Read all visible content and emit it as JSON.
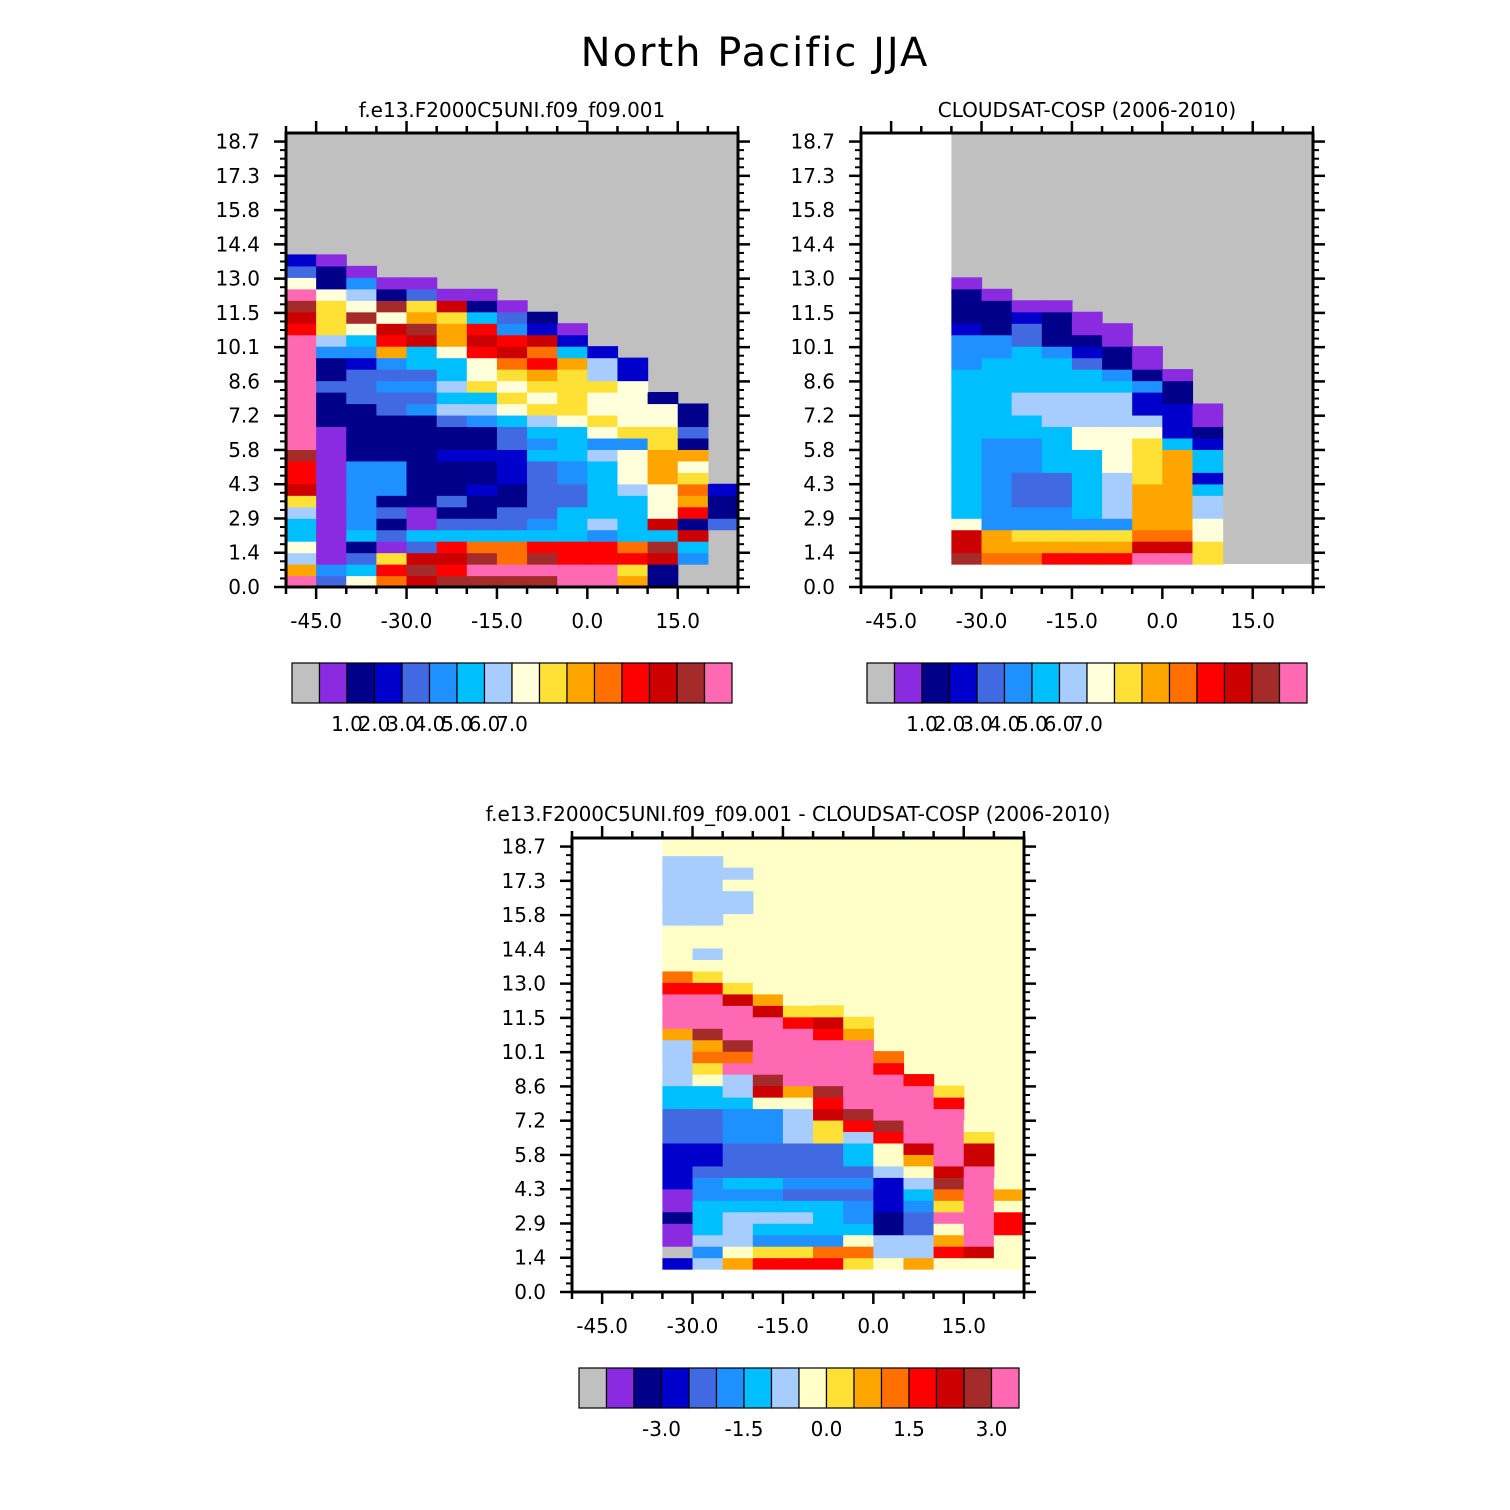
{
  "main_title": "North Pacific JJA",
  "colors": {
    "abs_palette": [
      "#c0c0c0",
      "#8a2be2",
      "#00008b",
      "#0000cd",
      "#4169e1",
      "#1e90ff",
      "#00bfff",
      "#a7cdff",
      "#ffffdc",
      "#ffe135",
      "#ffa500",
      "#ff7000",
      "#ff0000",
      "#cc0000",
      "#a52a2a",
      "#ff69b4"
    ],
    "diff_palette": [
      "#c0c0c0",
      "#8a2be2",
      "#00008b",
      "#0000cd",
      "#4169e1",
      "#1e90ff",
      "#00bfff",
      "#a7cdff",
      "#ffffc8",
      "#ffe135",
      "#ffa500",
      "#ff7000",
      "#ff0000",
      "#cc0000",
      "#a52a2a",
      "#ff69b4"
    ],
    "abs_missing": "#c0c0c0",
    "diff_missing": "#ffffc8"
  },
  "chart_data": [
    {
      "type": "heatmap",
      "title": "f.e13.F2000C5UNI.f09_f09.001",
      "x_tick_labels": [
        "-45.0",
        "-30.0",
        "-15.0",
        "0.0",
        "15.0"
      ],
      "y_tick_labels": [
        "0.0",
        "1.4",
        "2.9",
        "4.3",
        "5.8",
        "7.2",
        "8.6",
        "10.1",
        "11.5",
        "13.0",
        "14.4",
        "15.8",
        "17.3",
        "18.7"
      ],
      "xlim": [
        -50,
        25
      ],
      "ylim": [
        0,
        19
      ],
      "x0": -50,
      "dx": 5,
      "y0": 0,
      "dy": 0.48,
      "grid": false,
      "values": [
        [
          15,
          4,
          8,
          11,
          13,
          14,
          14,
          14,
          14,
          15,
          15,
          10,
          2,
          99,
          99
        ],
        [
          10,
          5,
          6,
          12,
          14,
          12,
          15,
          15,
          15,
          15,
          15,
          9,
          2,
          99,
          99
        ],
        [
          7,
          1,
          4,
          9,
          13,
          13,
          14,
          11,
          14,
          12,
          12,
          12,
          13,
          5,
          99
        ],
        [
          8,
          1,
          2,
          1,
          4,
          12,
          11,
          11,
          12,
          12,
          12,
          11,
          14,
          6,
          99
        ],
        [
          6,
          1,
          6,
          4,
          6,
          6,
          6,
          6,
          6,
          6,
          5,
          6,
          6,
          13,
          99
        ],
        [
          6,
          1,
          5,
          2,
          1,
          4,
          4,
          4,
          5,
          6,
          7,
          6,
          13,
          2,
          4
        ],
        [
          7,
          1,
          5,
          4,
          1,
          2,
          2,
          4,
          4,
          6,
          6,
          6,
          8,
          12,
          2
        ],
        [
          9,
          1,
          5,
          2,
          2,
          4,
          2,
          2,
          4,
          4,
          6,
          6,
          8,
          10,
          2
        ],
        [
          13,
          1,
          5,
          5,
          2,
          2,
          3,
          2,
          4,
          4,
          6,
          7,
          8,
          11,
          3
        ],
        [
          12,
          1,
          5,
          5,
          2,
          2,
          2,
          3,
          4,
          5,
          6,
          8,
          10,
          9,
          99
        ],
        [
          12,
          1,
          5,
          5,
          2,
          2,
          2,
          3,
          4,
          5,
          6,
          8,
          10,
          8,
          99
        ],
        [
          14,
          1,
          2,
          2,
          2,
          3,
          3,
          3,
          6,
          6,
          7,
          8,
          10,
          10,
          99
        ],
        [
          15,
          1,
          2,
          2,
          2,
          2,
          2,
          4,
          5,
          6,
          5,
          5,
          9,
          2,
          99
        ],
        [
          15,
          1,
          2,
          2,
          2,
          2,
          2,
          4,
          6,
          6,
          8,
          9,
          9,
          4,
          99
        ],
        [
          15,
          2,
          2,
          2,
          2,
          4,
          5,
          6,
          7,
          8,
          9,
          8,
          8,
          2,
          99
        ],
        [
          15,
          2,
          2,
          4,
          5,
          7,
          7,
          8,
          9,
          9,
          8,
          8,
          8,
          2,
          99
        ],
        [
          15,
          2,
          4,
          4,
          4,
          6,
          6,
          9,
          8,
          9,
          8,
          8,
          2,
          99,
          99
        ],
        [
          15,
          4,
          4,
          5,
          5,
          7,
          9,
          8,
          9,
          9,
          9,
          8,
          99,
          99,
          99
        ],
        [
          15,
          2,
          4,
          4,
          4,
          6,
          8,
          9,
          10,
          9,
          7,
          3,
          99,
          99,
          99
        ],
        [
          15,
          2,
          3,
          5,
          6,
          6,
          8,
          11,
          12,
          10,
          7,
          3,
          99,
          99,
          99
        ],
        [
          15,
          5,
          5,
          10,
          6,
          8,
          12,
          13,
          11,
          6,
          3,
          99,
          99,
          99,
          99
        ],
        [
          15,
          7,
          6,
          12,
          13,
          10,
          13,
          12,
          13,
          3,
          99,
          99,
          99,
          99,
          99
        ],
        [
          12,
          9,
          8,
          13,
          14,
          10,
          12,
          5,
          3,
          1,
          99,
          99,
          99,
          99,
          99
        ],
        [
          13,
          9,
          14,
          8,
          10,
          9,
          6,
          4,
          2,
          99,
          99,
          99,
          99,
          99,
          99
        ],
        [
          14,
          9,
          8,
          14,
          9,
          13,
          2,
          1,
          99,
          99,
          99,
          99,
          99,
          99,
          99
        ],
        [
          15,
          8,
          7,
          2,
          4,
          1,
          1,
          99,
          99,
          99,
          99,
          99,
          99,
          99,
          99
        ],
        [
          8,
          2,
          5,
          1,
          1,
          99,
          99,
          99,
          99,
          99,
          99,
          99,
          99,
          99,
          99
        ],
        [
          4,
          2,
          1,
          99,
          99,
          99,
          99,
          99,
          99,
          99,
          99,
          99,
          99,
          99,
          99
        ],
        [
          3,
          1,
          99,
          99,
          99,
          99,
          99,
          99,
          99,
          99,
          99,
          99,
          99,
          99,
          99
        ]
      ],
      "colorbar": {
        "labels": [
          "1.0",
          "2.0",
          "3.0",
          "4.0",
          "5.0",
          "6.0",
          "7.0"
        ],
        "first_label_box": 1
      }
    },
    {
      "type": "heatmap",
      "title": "CLOUDSAT-COSP (2006-2010)",
      "x_tick_labels": [
        "-45.0",
        "-30.0",
        "-15.0",
        "0.0",
        "15.0"
      ],
      "y_tick_labels": [
        "0.0",
        "1.4",
        "2.9",
        "4.3",
        "5.8",
        "7.2",
        "8.6",
        "10.1",
        "11.5",
        "13.0",
        "14.4",
        "15.8",
        "17.3",
        "18.7"
      ],
      "xlim": [
        -50,
        25
      ],
      "ylim": [
        0,
        19
      ],
      "x0": -35,
      "dx": 5,
      "y0": 0.96,
      "dy": 0.48,
      "grid": false,
      "values": [
        [
          14,
          11,
          11,
          12,
          12,
          12,
          15,
          15,
          9
        ],
        [
          13,
          10,
          10,
          10,
          10,
          10,
          13,
          13,
          9
        ],
        [
          13,
          10,
          9,
          9,
          9,
          9,
          11,
          11,
          8
        ],
        [
          8,
          5,
          5,
          5,
          5,
          5,
          10,
          10,
          8
        ],
        [
          6,
          5,
          5,
          5,
          6,
          7,
          10,
          10,
          7
        ],
        [
          6,
          5,
          4,
          4,
          6,
          7,
          10,
          10,
          7
        ],
        [
          6,
          5,
          4,
          4,
          6,
          7,
          10,
          10,
          6
        ],
        [
          6,
          5,
          4,
          4,
          6,
          7,
          9,
          10,
          3
        ],
        [
          6,
          5,
          5,
          6,
          6,
          8,
          9,
          10,
          6
        ],
        [
          6,
          5,
          5,
          6,
          6,
          8,
          9,
          10,
          6
        ],
        [
          6,
          5,
          5,
          6,
          8,
          8,
          9,
          6,
          3
        ],
        [
          6,
          6,
          6,
          6,
          8,
          8,
          8,
          3,
          2
        ],
        [
          6,
          6,
          6,
          7,
          7,
          7,
          7,
          3,
          1
        ],
        [
          6,
          6,
          7,
          7,
          7,
          7,
          3,
          3,
          1
        ],
        [
          6,
          6,
          7,
          7,
          7,
          7,
          3,
          2
        ],
        [
          6,
          6,
          6,
          6,
          6,
          6,
          5,
          2
        ],
        [
          6,
          6,
          6,
          6,
          6,
          5,
          2,
          1
        ],
        [
          5,
          6,
          6,
          6,
          4,
          2,
          1
        ],
        [
          5,
          5,
          6,
          5,
          3,
          2,
          1
        ],
        [
          5,
          5,
          4,
          2,
          2,
          1
        ],
        [
          3,
          2,
          4,
          2,
          1,
          1
        ],
        [
          2,
          2,
          3,
          2,
          1
        ],
        [
          2,
          2,
          1,
          1
        ],
        [
          2,
          1
        ],
        [
          1
        ]
      ],
      "colorbar": {
        "labels": [
          "1.0",
          "2.0",
          "3.0",
          "4.0",
          "5.0",
          "6.0",
          "7.0"
        ],
        "first_label_box": 1
      }
    },
    {
      "type": "heatmap",
      "title": "f.e13.F2000C5UNI.f09_f09.001 - CLOUDSAT-COSP (2006-2010)",
      "x_tick_labels": [
        "-45.0",
        "-30.0",
        "-15.0",
        "0.0",
        "15.0"
      ],
      "y_tick_labels": [
        "0.0",
        "1.4",
        "2.9",
        "4.3",
        "5.8",
        "7.2",
        "8.6",
        "10.1",
        "11.5",
        "13.0",
        "14.4",
        "15.8",
        "17.3",
        "18.7"
      ],
      "xlim": [
        -50,
        25
      ],
      "ylim": [
        0,
        19
      ],
      "x0": -35,
      "dx": 5,
      "y0": 0.96,
      "dy": 0.48,
      "grid": false,
      "values": [
        [
          3,
          7,
          10,
          12,
          12,
          12,
          9,
          8,
          10,
          8,
          8,
          8
        ],
        [
          0,
          5,
          8,
          9,
          9,
          11,
          11,
          7,
          7,
          12,
          13,
          8
        ],
        [
          1,
          7,
          7,
          5,
          5,
          5,
          8,
          7,
          7,
          10,
          15,
          8
        ],
        [
          1,
          6,
          7,
          6,
          6,
          6,
          6,
          2,
          4,
          8,
          15,
          12
        ],
        [
          2,
          6,
          7,
          7,
          7,
          6,
          5,
          2,
          4,
          15,
          15,
          12
        ],
        [
          1,
          6,
          6,
          6,
          6,
          6,
          5,
          3,
          5,
          9,
          15,
          8
        ],
        [
          1,
          5,
          5,
          5,
          4,
          4,
          4,
          3,
          6,
          11,
          15,
          10
        ],
        [
          3,
          5,
          6,
          6,
          5,
          5,
          5,
          3,
          7,
          14,
          15,
          8
        ],
        [
          3,
          4,
          4,
          4,
          4,
          4,
          4,
          7,
          8,
          13,
          15
        ],
        [
          3,
          3,
          4,
          4,
          4,
          4,
          6,
          8,
          10,
          15,
          13
        ],
        [
          3,
          3,
          4,
          4,
          4,
          4,
          6,
          8,
          13,
          15,
          13
        ],
        [
          4,
          4,
          5,
          5,
          7,
          9,
          7,
          12,
          15,
          15,
          9
        ],
        [
          4,
          4,
          5,
          5,
          7,
          9,
          12,
          14,
          15,
          15,
          8
        ],
        [
          4,
          4,
          5,
          5,
          7,
          13,
          14,
          15,
          15,
          15
        ],
        [
          6,
          6,
          6,
          8,
          8,
          12,
          15,
          15,
          15,
          12
        ],
        [
          6,
          6,
          7,
          13,
          10,
          14,
          15,
          15,
          15,
          9
        ],
        [
          7,
          8,
          7,
          14,
          15,
          15,
          15,
          15,
          12
        ],
        [
          7,
          9,
          15,
          15,
          15,
          15,
          15,
          12
        ],
        [
          7,
          11,
          11,
          15,
          15,
          15,
          15,
          11
        ],
        [
          7,
          10,
          14,
          15,
          15,
          15,
          15
        ],
        [
          10,
          14,
          15,
          15,
          15,
          12,
          10
        ],
        [
          15,
          15,
          15,
          15,
          12,
          13,
          9
        ],
        [
          15,
          15,
          15,
          13,
          9,
          9
        ],
        [
          15,
          15,
          13,
          10,
          8
        ],
        [
          12,
          12,
          9,
          8
        ],
        [
          11,
          9,
          8,
          8
        ],
        [
          8,
          8,
          8
        ],
        [
          8,
          7,
          8
        ],
        [
          8,
          8,
          8
        ],
        [
          8,
          8
        ],
        [
          7,
          7
        ],
        [
          7,
          7,
          7
        ],
        [
          7,
          7,
          7
        ],
        [
          7,
          7,
          8
        ],
        [
          7,
          7,
          7
        ],
        [
          7,
          7
        ]
      ],
      "colorbar": {
        "labels": [
          "-3.0",
          "-1.5",
          "0.0",
          "1.5",
          "3.0"
        ],
        "first_label_box": 2,
        "label_step": 3
      }
    }
  ]
}
